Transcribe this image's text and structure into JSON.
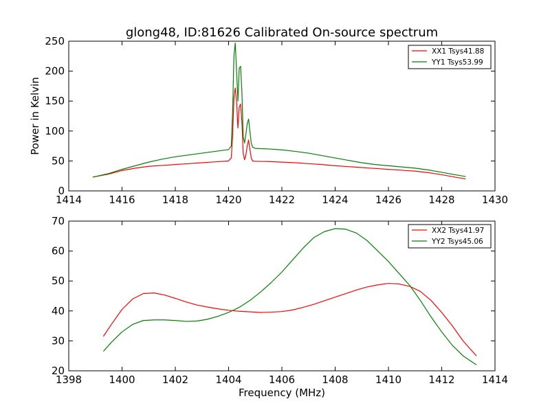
{
  "title": "glong48, ID:81626 Calibrated On-source spectrum",
  "colors": {
    "xx": "#ff0000",
    "yy": "#008000"
  },
  "chart_data": [
    {
      "type": "line",
      "ylabel": "Power in Kelvin",
      "xlabel": "",
      "xlim": [
        1414,
        1430
      ],
      "ylim": [
        0,
        250
      ],
      "xticks": [
        "1414",
        "1416",
        "1418",
        "1420",
        "1422",
        "1424",
        "1426",
        "1428",
        "1430"
      ],
      "yticks": [
        "0",
        "50",
        "100",
        "150",
        "200",
        "250"
      ],
      "legend_position": "top-right",
      "series": [
        {
          "name": "XX1 Tsys41.88",
          "color": "#ff0000",
          "x": [
            1414.9,
            1415.5,
            1416,
            1416.5,
            1417,
            1417.5,
            1418,
            1418.5,
            1419,
            1419.5,
            1420,
            1420.1,
            1420.15,
            1420.2,
            1420.25,
            1420.3,
            1420.35,
            1420.4,
            1420.45,
            1420.5,
            1420.55,
            1420.6,
            1420.65,
            1420.7,
            1420.75,
            1420.8,
            1420.85,
            1420.9,
            1421,
            1421.5,
            1422,
            1422.5,
            1423,
            1423.5,
            1424,
            1424.5,
            1425,
            1425.5,
            1426,
            1426.5,
            1427,
            1427.5,
            1428,
            1428.5,
            1428.9
          ],
          "y": [
            23,
            28,
            34,
            38,
            41,
            42.5,
            44,
            45.5,
            47,
            48.5,
            50,
            55,
            90,
            155,
            172,
            150,
            105,
            140,
            145,
            115,
            62,
            52,
            60,
            75,
            85,
            70,
            55,
            50,
            49.5,
            49,
            48,
            47,
            45.5,
            44,
            42,
            40.5,
            39,
            37.5,
            36,
            34.5,
            33,
            30.5,
            27,
            23,
            20
          ]
        },
        {
          "name": "YY1 Tsys53.99",
          "color": "#008000",
          "x": [
            1414.9,
            1415.5,
            1416,
            1416.5,
            1417,
            1417.5,
            1418,
            1418.5,
            1419,
            1419.5,
            1420,
            1420.1,
            1420.15,
            1420.2,
            1420.25,
            1420.3,
            1420.35,
            1420.4,
            1420.45,
            1420.5,
            1420.55,
            1420.6,
            1420.65,
            1420.7,
            1420.75,
            1420.8,
            1420.85,
            1420.9,
            1421,
            1421.5,
            1422,
            1422.5,
            1423,
            1423.5,
            1424,
            1424.5,
            1425,
            1425.5,
            1426,
            1426.5,
            1427,
            1427.5,
            1428,
            1428.5,
            1428.9
          ],
          "y": [
            23,
            29,
            36,
            42,
            48,
            53,
            57,
            60,
            63,
            66,
            69,
            75,
            130,
            225,
            247,
            200,
            150,
            205,
            208,
            165,
            90,
            80,
            95,
            112,
            120,
            100,
            80,
            73,
            71,
            70,
            68.5,
            66,
            63,
            59,
            55,
            51,
            47,
            44,
            42,
            40,
            38,
            35,
            31,
            27,
            24
          ]
        }
      ]
    },
    {
      "type": "line",
      "ylabel": "",
      "xlabel": "Frequency (MHz)",
      "xlim": [
        1398,
        1414
      ],
      "ylim": [
        20,
        70
      ],
      "xticks": [
        "1398",
        "1400",
        "1402",
        "1404",
        "1406",
        "1408",
        "1410",
        "1412",
        "1414"
      ],
      "yticks": [
        "20",
        "30",
        "40",
        "50",
        "60",
        "70"
      ],
      "legend_position": "top-right",
      "series": [
        {
          "name": "XX2 Tsys41.97",
          "color": "#ff0000",
          "x": [
            1399.3,
            1399.6,
            1400,
            1400.4,
            1400.8,
            1401.2,
            1401.6,
            1402,
            1402.4,
            1402.8,
            1403.2,
            1403.6,
            1404,
            1404.4,
            1404.8,
            1405.2,
            1405.6,
            1406,
            1406.4,
            1406.8,
            1407.2,
            1407.6,
            1408,
            1408.4,
            1408.8,
            1409.2,
            1409.6,
            1410,
            1410.4,
            1410.8,
            1411.2,
            1411.6,
            1412,
            1412.4,
            1412.8,
            1413.3
          ],
          "y": [
            31.5,
            35.5,
            40.5,
            44,
            45.8,
            46,
            45.3,
            44.2,
            43,
            42,
            41.3,
            40.7,
            40.2,
            39.9,
            39.7,
            39.5,
            39.6,
            39.8,
            40.3,
            41.2,
            42.2,
            43.4,
            44.6,
            45.8,
            47,
            48,
            48.7,
            49.2,
            49,
            48.2,
            46.5,
            43.5,
            39.5,
            35,
            30,
            25
          ]
        },
        {
          "name": "YY2 Tsys45.06",
          "color": "#008000",
          "x": [
            1399.3,
            1399.6,
            1400,
            1400.4,
            1400.8,
            1401.2,
            1401.6,
            1402,
            1402.4,
            1402.8,
            1403.2,
            1403.6,
            1404,
            1404.4,
            1404.8,
            1405.2,
            1405.6,
            1406,
            1406.4,
            1406.8,
            1407.2,
            1407.6,
            1408,
            1408.4,
            1408.8,
            1409.2,
            1409.6,
            1410,
            1410.4,
            1410.8,
            1411.2,
            1411.6,
            1412,
            1412.4,
            1412.8,
            1413.3
          ],
          "y": [
            26.5,
            29.5,
            33,
            35.5,
            36.8,
            37,
            37,
            36.8,
            36.5,
            36.6,
            37.2,
            38.2,
            39.5,
            41.2,
            43.5,
            46.3,
            49.5,
            53,
            57,
            61,
            64.5,
            66.5,
            67.5,
            67.3,
            66,
            63.5,
            60,
            56.5,
            52.5,
            48.5,
            43.5,
            38,
            33,
            28.5,
            25,
            22
          ]
        }
      ]
    }
  ]
}
